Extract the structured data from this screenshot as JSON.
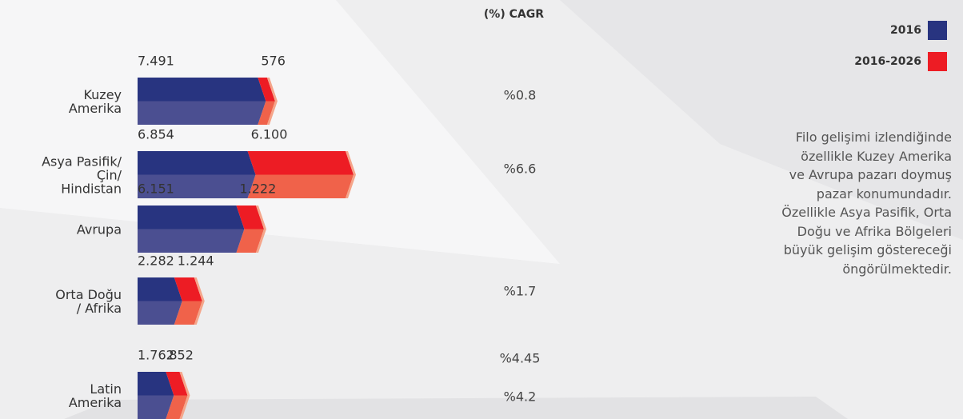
{
  "chart_data": {
    "type": "stacked_bar_horizontal",
    "categories": [
      "Kuzey\nAmerika",
      "Asya Pasifik/\nÇin/\nHindistan",
      "Avrupa",
      "Orta Doğu\n/ Afrika",
      "Latin\nAmerika"
    ],
    "series": [
      {
        "name": "2016",
        "color": "#283480",
        "values": [
          7491,
          6854,
          6151,
          2282,
          1762
        ],
        "value_labels": [
          "7.491",
          "6.854",
          "6.151",
          "2.282",
          "1.762"
        ]
      },
      {
        "name": "2016-2026",
        "color": "#ed1c24",
        "values": [
          576,
          6100,
          1222,
          1244,
          852
        ],
        "value_labels": [
          "576",
          "6.100",
          "1.222",
          "1.244",
          "852"
        ]
      }
    ],
    "cagr": {
      "title": "(%) CAGR",
      "values": [
        0.8,
        6.6,
        1.7,
        4.45,
        4.2
      ],
      "value_labels": [
        "%0.8",
        "%6.6",
        "%1.7",
        "%4.45",
        "%4.2"
      ]
    },
    "note": "Filo gelişimi izlendiğinde\nözellikle Kuzey Amerika\nve Avrupa pazarı doymuş\npazar konumundadır.\nÖzellikle Asya Pasifik, Orta\nDoğu ve Afrika Bölgeleri\nbüyük gelişim göstereceği\nöngörülmektedir."
  }
}
